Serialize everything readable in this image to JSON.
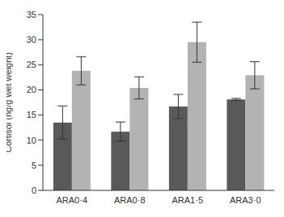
{
  "chart_data": {
    "type": "bar",
    "categories": [
      "ARA0·4",
      "ARA0·8",
      "ARA1·5",
      "ARA3·0"
    ],
    "y_label": "Cortisol (ng/g wet weight)",
    "series": [
      {
        "color": "#595959",
        "values": [
          13.5,
          11.7,
          16.7,
          18.1
        ],
        "errors": [
          3.3,
          1.9,
          2.4,
          0.2
        ]
      },
      {
        "color": "#b3b3b3",
        "values": [
          23.8,
          20.4,
          29.5,
          22.9
        ],
        "errors": [
          2.8,
          2.2,
          4.0,
          2.7
        ]
      }
    ],
    "ylim": [
      0,
      35
    ],
    "yticks": [
      0,
      5,
      10,
      15,
      20,
      25,
      30,
      35
    ],
    "grid": false
  }
}
